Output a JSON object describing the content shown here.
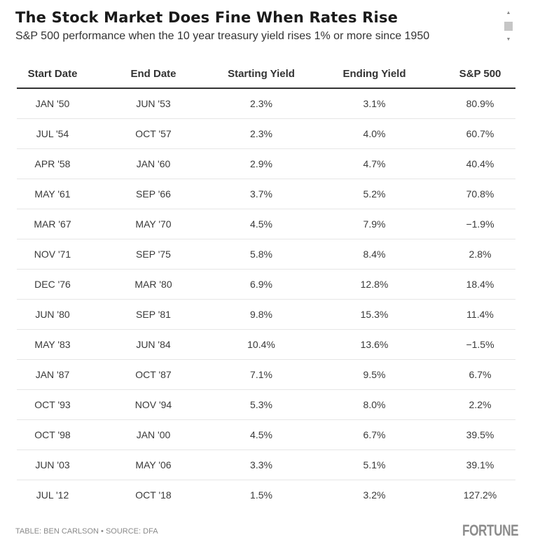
{
  "title": "The Stock Market Does Fine When Rates Rise",
  "subtitle": "S&P 500 performance when the 10 year treasury yield rises 1% or more since 1950",
  "chart_data": {
    "type": "table",
    "columns": [
      "Start Date",
      "End Date",
      "Starting Yield",
      "Ending Yield",
      "S&P 500"
    ],
    "rows": [
      [
        "JAN '50",
        "JUN '53",
        "2.3%",
        "3.1%",
        "80.9%"
      ],
      [
        "JUL '54",
        "OCT '57",
        "2.3%",
        "4.0%",
        "60.7%"
      ],
      [
        "APR '58",
        "JAN '60",
        "2.9%",
        "4.7%",
        "40.4%"
      ],
      [
        "MAY '61",
        "SEP '66",
        "3.7%",
        "5.2%",
        "70.8%"
      ],
      [
        "MAR '67",
        "MAY '70",
        "4.5%",
        "7.9%",
        "−1.9%"
      ],
      [
        "NOV '71",
        "SEP '75",
        "5.8%",
        "8.4%",
        "2.8%"
      ],
      [
        "DEC '76",
        "MAR '80",
        "6.9%",
        "12.8%",
        "18.4%"
      ],
      [
        "JUN '80",
        "SEP '81",
        "9.8%",
        "15.3%",
        "11.4%"
      ],
      [
        "MAY '83",
        "JUN '84",
        "10.4%",
        "13.6%",
        "−1.5%"
      ],
      [
        "JAN '87",
        "OCT '87",
        "7.1%",
        "9.5%",
        "6.7%"
      ],
      [
        "OCT '93",
        "NOV '94",
        "5.3%",
        "8.0%",
        "2.2%"
      ],
      [
        "OCT '98",
        "JAN '00",
        "4.5%",
        "6.7%",
        "39.5%"
      ],
      [
        "JUN '03",
        "MAY '06",
        "3.3%",
        "5.1%",
        "39.1%"
      ],
      [
        "JUL '12",
        "OCT '18",
        "1.5%",
        "3.2%",
        "127.2%"
      ]
    ]
  },
  "source": "TABLE: BEN CARLSON • SOURCE: DFA",
  "logo": "FORTUNE",
  "colors": {
    "header_rule": "#333333",
    "row_rule": "#e6e6e6",
    "logo": "#8c8c8c"
  }
}
